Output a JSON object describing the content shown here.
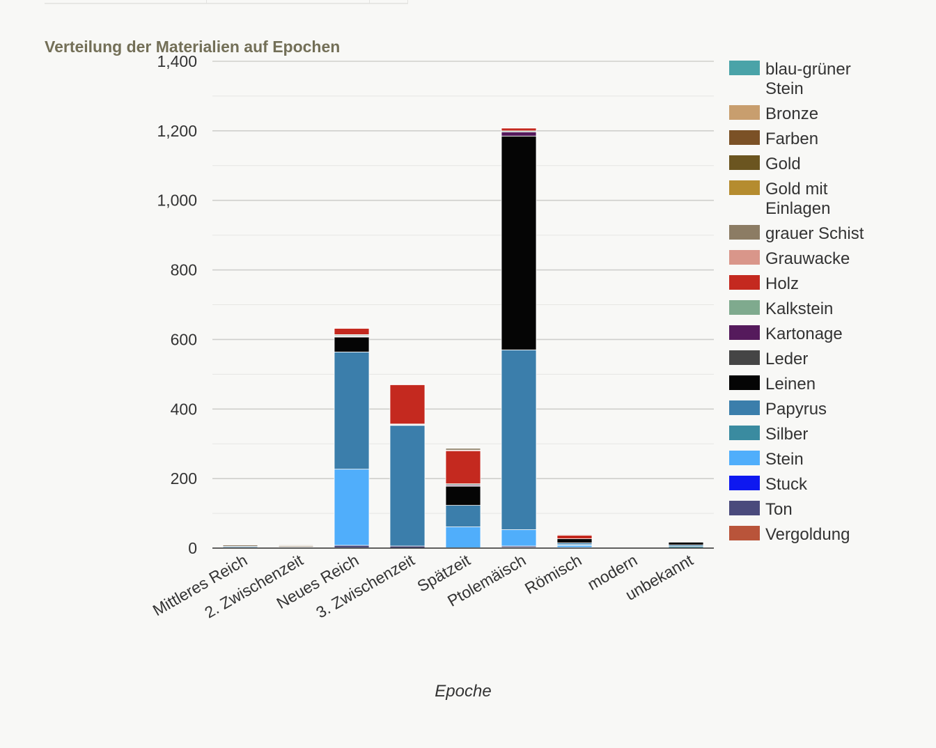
{
  "page": {
    "title": "Verteilung der Materialien auf Epochen"
  },
  "chart_data": {
    "type": "bar",
    "stacked": true,
    "title": "Verteilung der Materialien auf Epochen",
    "xlabel": "Epoche",
    "ylabel": "",
    "ylim": [
      0,
      1400
    ],
    "yticks": [
      0,
      200,
      400,
      600,
      800,
      1000,
      1200,
      1400
    ],
    "ytick_labels": [
      "0",
      "200",
      "400",
      "600",
      "800",
      "1,000",
      "1,200",
      "1,400"
    ],
    "grid": true,
    "legend_position": "right",
    "categories": [
      "Mittleres Reich",
      "2. Zwischenzeit",
      "Neues Reich",
      "3. Zwischenzeit",
      "Spätzeit",
      "Ptolemäisch",
      "Römisch",
      "modern",
      "unbekannt"
    ],
    "series": [
      {
        "name": "blau-grüner Stein",
        "color": "#4aa3a8",
        "values": [
          0,
          0,
          0,
          0,
          0,
          0,
          0,
          0,
          0
        ]
      },
      {
        "name": "Bronze",
        "color": "#c89e6e",
        "values": [
          0,
          0,
          1,
          0,
          0,
          1,
          0,
          0,
          0
        ]
      },
      {
        "name": "Farben",
        "color": "#7b5126",
        "values": [
          0,
          2,
          0,
          0,
          0,
          2,
          0,
          0,
          0
        ]
      },
      {
        "name": "Gold",
        "color": "#6b5520",
        "values": [
          0,
          1,
          0,
          0,
          0,
          0,
          0,
          0,
          0
        ]
      },
      {
        "name": "Gold mit Einlagen",
        "color": "#b58c2f",
        "values": [
          0,
          0,
          0,
          0,
          0,
          0,
          0,
          0,
          0
        ]
      },
      {
        "name": "grauer Schist",
        "color": "#8c7c64",
        "values": [
          4,
          3,
          2,
          1,
          5,
          1,
          2,
          0,
          0
        ]
      },
      {
        "name": "Grauwacke",
        "color": "#d9968a",
        "values": [
          0,
          0,
          2,
          0,
          2,
          2,
          1,
          0,
          0
        ]
      },
      {
        "name": "Holz",
        "color": "#c4291f",
        "values": [
          0,
          0,
          18,
          113,
          95,
          8,
          10,
          0,
          0
        ]
      },
      {
        "name": "Kalkstein",
        "color": "#7faa8e",
        "values": [
          0,
          0,
          3,
          2,
          3,
          3,
          0,
          0,
          0
        ]
      },
      {
        "name": "Kartonage",
        "color": "#551a5c",
        "values": [
          0,
          0,
          2,
          1,
          3,
          12,
          0,
          0,
          0
        ]
      },
      {
        "name": "Leder",
        "color": "#454545",
        "values": [
          0,
          0,
          2,
          0,
          1,
          0,
          0,
          0,
          0
        ]
      },
      {
        "name": "Leinen",
        "color": "#050505",
        "values": [
          0,
          2,
          43,
          1,
          55,
          615,
          12,
          0,
          8
        ]
      },
      {
        "name": "Papyrus",
        "color": "#3b7eab",
        "values": [
          3,
          0,
          337,
          347,
          62,
          517,
          5,
          0,
          4
        ]
      },
      {
        "name": "Silber",
        "color": "#3a8ba0",
        "values": [
          0,
          0,
          0,
          0,
          0,
          0,
          2,
          0,
          4
        ]
      },
      {
        "name": "Stein",
        "color": "#50aefb",
        "values": [
          1,
          0,
          219,
          0,
          60,
          47,
          6,
          0,
          0
        ]
      },
      {
        "name": "Stuck",
        "color": "#0e18f0",
        "values": [
          0,
          0,
          0,
          0,
          0,
          0,
          0,
          0,
          0
        ]
      },
      {
        "name": "Ton",
        "color": "#4a4a7c",
        "values": [
          1,
          1,
          7,
          6,
          1,
          4,
          1,
          0,
          1
        ]
      },
      {
        "name": "Vergoldung",
        "color": "#b9543a",
        "values": [
          0,
          0,
          1,
          0,
          0,
          2,
          1,
          0,
          0
        ]
      }
    ]
  }
}
